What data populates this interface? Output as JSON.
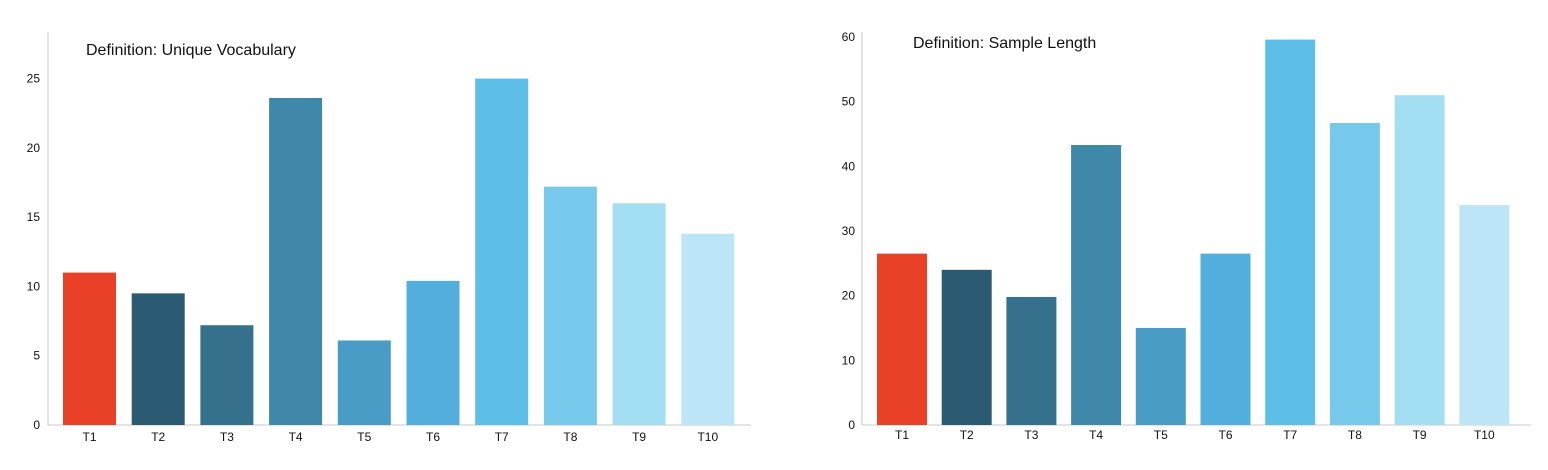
{
  "chart_data": [
    {
      "type": "bar",
      "title": "Definition: Unique Vocabulary",
      "xlabel": "",
      "ylabel": "",
      "categories": [
        "T1",
        "T2",
        "T3",
        "T4",
        "T5",
        "T6",
        "T7",
        "T8",
        "T9",
        "T10"
      ],
      "values": [
        11,
        9.5,
        7.2,
        23.6,
        6.1,
        10.4,
        25,
        17.2,
        16,
        13.8
      ],
      "colors": [
        "#E94128",
        "#2A5B73",
        "#35708D",
        "#3F88A9",
        "#489CC6",
        "#52AFDD",
        "#5DBEE8",
        "#77C9EC",
        "#A4DEF3",
        "#BCE5F7"
      ],
      "ylim": [
        0,
        28
      ],
      "yticks": [
        0,
        5,
        10,
        15,
        20,
        25
      ],
      "grid": false,
      "legend": "none"
    },
    {
      "type": "bar",
      "title": "Definition: Sample Length",
      "xlabel": "",
      "ylabel": "",
      "categories": [
        "T1",
        "T2",
        "T3",
        "T4",
        "T5",
        "T6",
        "T7",
        "T8",
        "T9",
        "T10"
      ],
      "values": [
        26.5,
        24,
        19.8,
        43.3,
        15,
        26.5,
        59.6,
        46.7,
        51,
        34
      ],
      "colors": [
        "#E94128",
        "#2A5B73",
        "#35708D",
        "#3F88A9",
        "#489CC6",
        "#52AFDD",
        "#5DBEE8",
        "#77C9EC",
        "#A4DEF3",
        "#BCE5F7"
      ],
      "ylim": [
        0,
        60
      ],
      "yticks": [
        0,
        10,
        20,
        30,
        40,
        50,
        60
      ],
      "grid": false,
      "legend": "none"
    }
  ]
}
